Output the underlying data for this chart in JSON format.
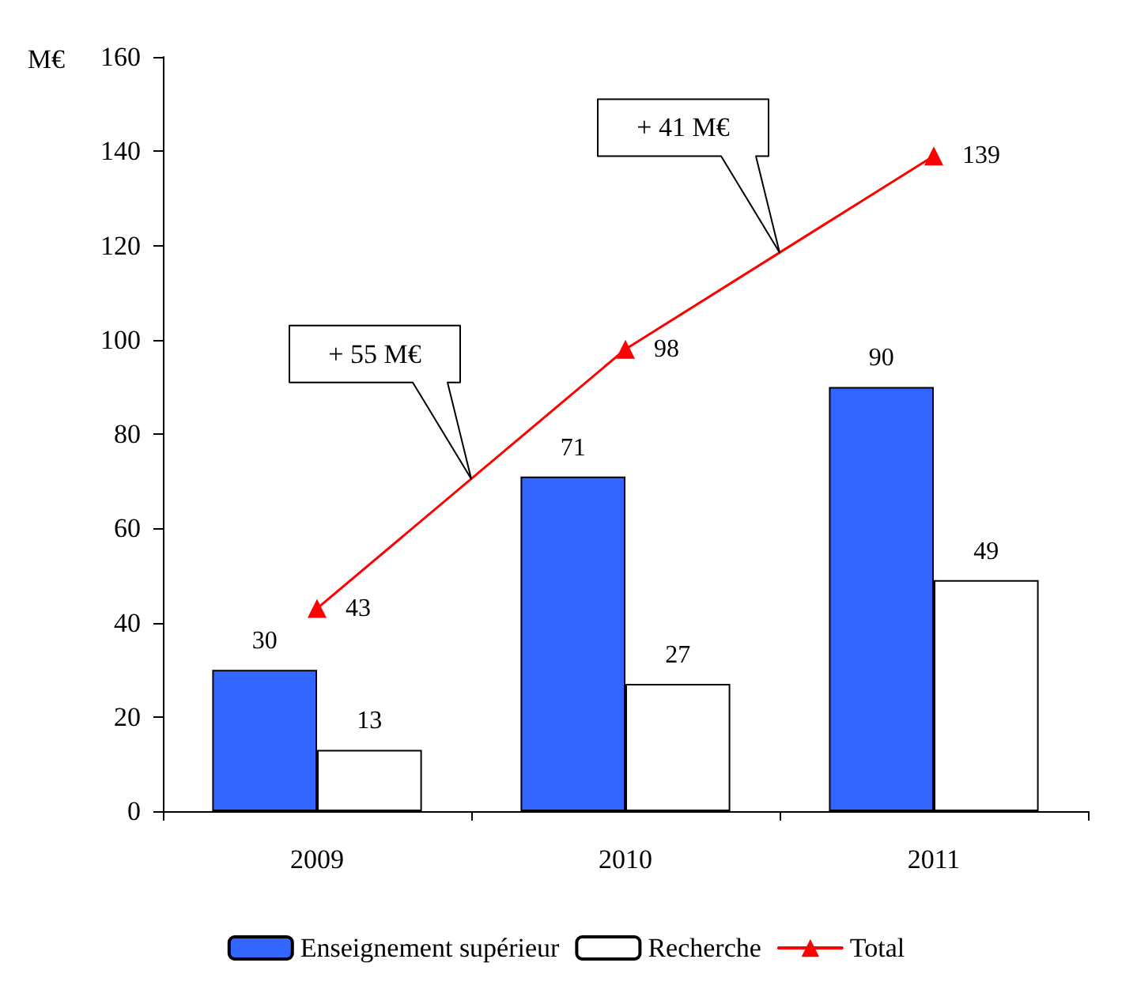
{
  "chart_data": {
    "type": "bar",
    "ylabel": "M€",
    "categories": [
      "2009",
      "2010",
      "2011"
    ],
    "series": [
      {
        "name": "Enseignement supérieur",
        "color": "#3366ff",
        "values": [
          30,
          71,
          90
        ]
      },
      {
        "name": "Recherche",
        "color": "#ffffff",
        "values": [
          13,
          27,
          49
        ]
      },
      {
        "name": "Total",
        "type": "line",
        "color": "#ff0000",
        "marker": "triangle",
        "values": [
          43,
          98,
          139
        ]
      }
    ],
    "ylim": [
      0,
      160
    ],
    "yticks": [
      0,
      20,
      40,
      60,
      80,
      100,
      120,
      140,
      160
    ],
    "grid": false,
    "legend": "bottom",
    "data_labels": true,
    "annotations": [
      "+ 55 M€",
      "+ 41 M€"
    ]
  }
}
